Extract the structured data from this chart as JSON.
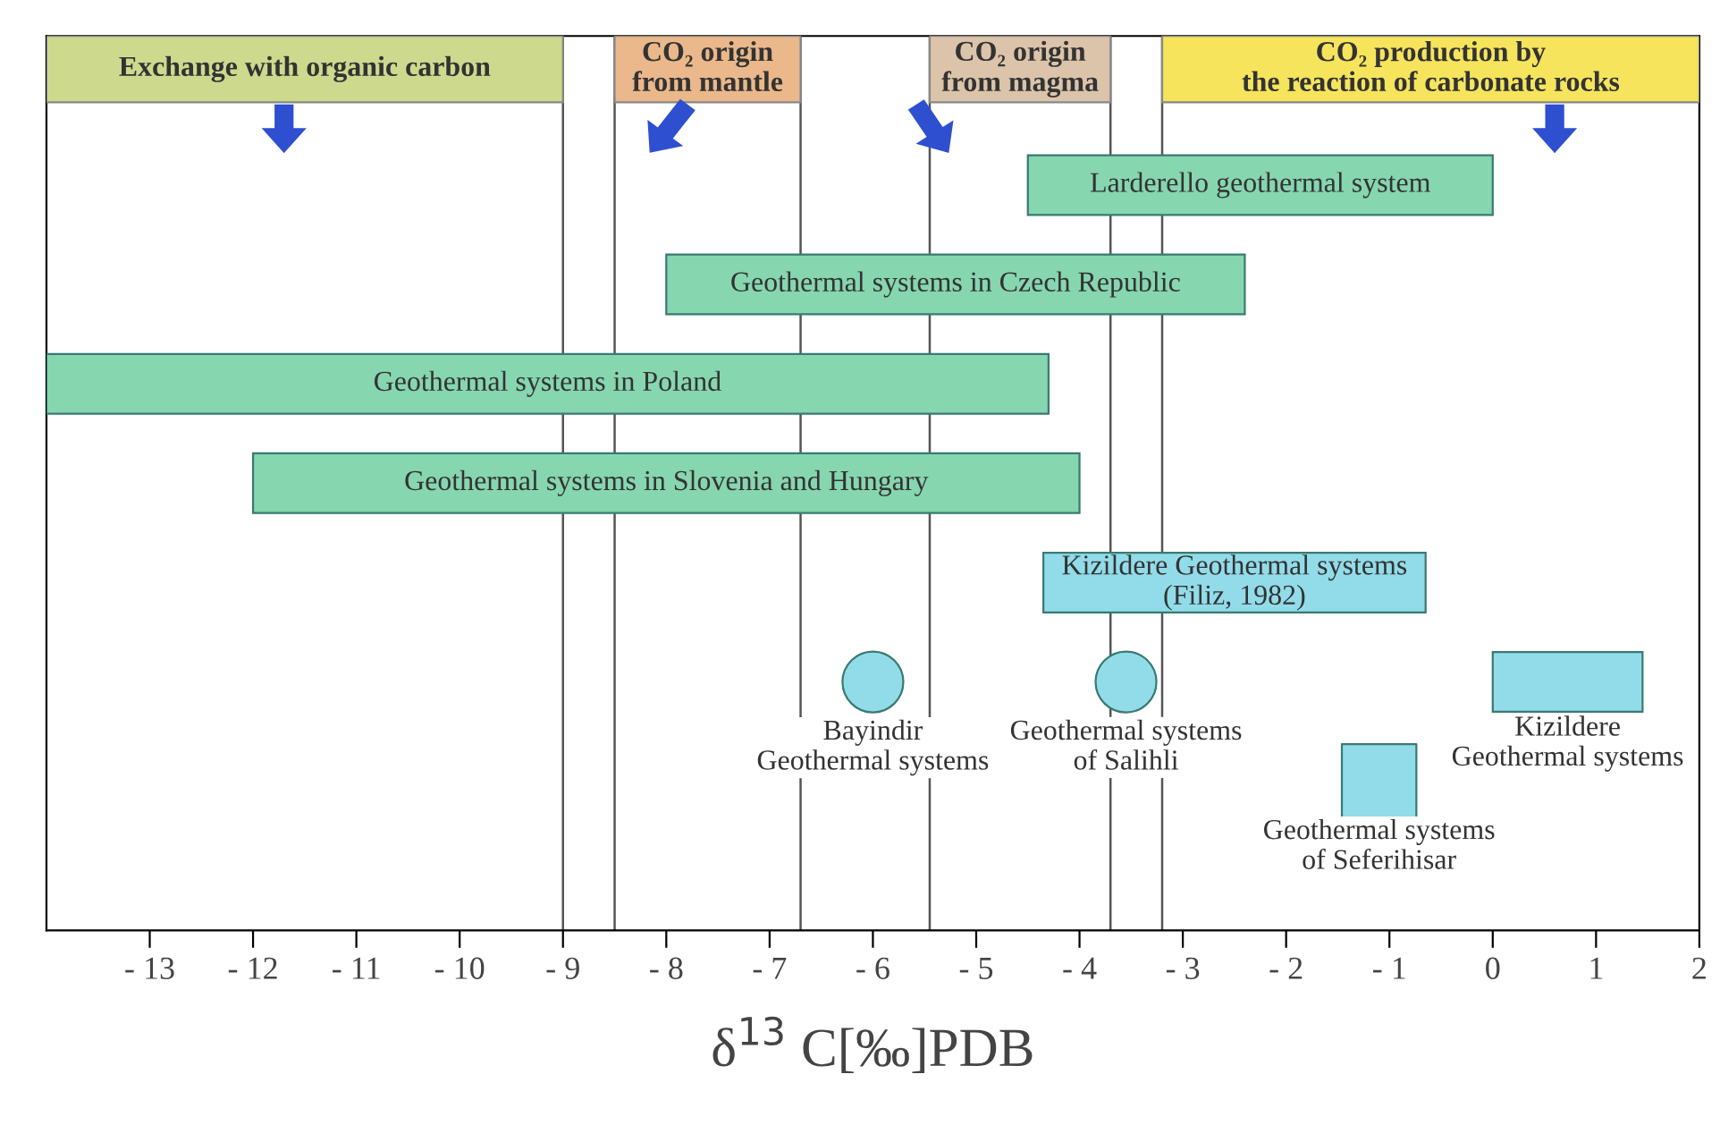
{
  "chart_data": {
    "type": "bar",
    "orientation": "horizontal",
    "categories": [
      null,
      null,
      null,
      null,
      null,
      null,
      null,
      null,
      null
    ],
    "xlabel": "δ$^{13}$ C[‰]PDB",
    "xlim": [
      -14,
      2
    ],
    "xticks": [
      {
        "value": -13,
        "label": "- 13"
      },
      {
        "value": -12,
        "label": "- 12"
      },
      {
        "value": -11,
        "label": "- 11"
      },
      {
        "value": -10,
        "label": "- 10"
      },
      {
        "value": -9,
        "label": "- 9"
      },
      {
        "value": -8,
        "label": "- 8"
      },
      {
        "value": -7,
        "label": "- 7"
      },
      {
        "value": -6,
        "label": "- 6"
      },
      {
        "value": -5,
        "label": "- 5"
      },
      {
        "value": -4,
        "label": "- 4"
      },
      {
        "value": -3,
        "label": "- 3"
      },
      {
        "value": -2,
        "label": "- 2"
      },
      {
        "value": -1,
        "label": "- 1"
      },
      0,
      1,
      2
    ],
    "tick_labels": "x",
    "grid": false,
    "series": [
      {
        "name": "Larderello geothermal system",
        "color": "#86d6b0",
        "base": [
          null,
          -4.5,
          null,
          null,
          null,
          null,
          null,
          null,
          null
        ],
        "values": [
          null,
          4.5,
          null,
          null,
          null,
          null,
          null,
          null,
          null
        ]
      },
      {
        "name": "Geothermal systems in Czech Republic",
        "color": "#86d6b0",
        "base": [
          null,
          null,
          -8.0,
          null,
          null,
          null,
          null,
          null,
          null
        ],
        "values": [
          null,
          null,
          5.6,
          null,
          null,
          null,
          null,
          null,
          null
        ]
      },
      {
        "name": "Geothermal systems in Poland",
        "color": "#86d6b0",
        "base": [
          null,
          null,
          null,
          -14.0,
          null,
          null,
          null,
          null,
          null
        ],
        "values": [
          null,
          null,
          null,
          9.7,
          null,
          null,
          null,
          null,
          null
        ]
      },
      {
        "name": "Geothermal systems in Slovenia and Hungary",
        "color": "#86d6b0",
        "base": [
          null,
          null,
          null,
          null,
          -12.0,
          null,
          null,
          null,
          null
        ],
        "values": [
          null,
          null,
          null,
          null,
          8.0,
          null,
          null,
          null,
          null
        ]
      },
      {
        "name": "Kizildere Geothermal systems\n(Filiz, 1982)",
        "color": "#92dcea",
        "base": [
          null,
          null,
          null,
          null,
          null,
          -4.35,
          null,
          null,
          null
        ],
        "values": [
          null,
          null,
          null,
          null,
          null,
          3.7,
          null,
          null,
          null
        ]
      },
      {
        "name": "Kizildere\nGeothermal systems",
        "color": "#92dcea",
        "base": [
          null,
          null,
          null,
          null,
          null,
          null,
          0.0,
          null,
          null
        ],
        "values": [
          null,
          null,
          null,
          null,
          null,
          null,
          1.45,
          null,
          null
        ]
      },
      {
        "name": "Bayindir\nGeothermal systems",
        "type": "scatter",
        "marker": "circle",
        "color": "#92dcea",
        "values": [
          null,
          null,
          null,
          null,
          null,
          null,
          -6.0,
          null,
          null
        ]
      },
      {
        "name": "Geothermal systems\nof Salihli",
        "type": "scatter",
        "marker": "circle",
        "color": "#92dcea",
        "values": [
          null,
          null,
          null,
          null,
          null,
          null,
          -3.55,
          null,
          null
        ]
      },
      {
        "name": "Geothermal systems\nof Seferihisar",
        "type": "scatter",
        "marker": "square",
        "color": "#92dcea",
        "values": [
          null,
          null,
          null,
          null,
          null,
          null,
          null,
          -1.1,
          null
        ]
      }
    ],
    "ref_lines": [
      {
        "axis": "x",
        "value": -9,
        "color": "#555555"
      },
      {
        "axis": "x",
        "value": -8.5,
        "color": "#555555"
      },
      {
        "axis": "x",
        "value": -6.7,
        "color": "#555555"
      },
      {
        "axis": "x",
        "value": -5.45,
        "color": "#555555"
      },
      {
        "axis": "x",
        "value": -3.7,
        "color": "#555555"
      },
      {
        "axis": "x",
        "value": -3.2,
        "color": "#555555"
      }
    ],
    "bands": [
      {
        "axis": "x",
        "from": -14,
        "to": -9,
        "label": "Exchange with organic carbon",
        "color": "#cdda8e"
      },
      {
        "axis": "x",
        "from": -8.5,
        "to": -6.7,
        "label": "CO₂ origin\nfrom mantle",
        "color": "#eab88a"
      },
      {
        "axis": "x",
        "from": -5.45,
        "to": -3.7,
        "label": "CO₂ origin\nfrom magma",
        "color": "#dcc4aa"
      },
      {
        "axis": "x",
        "from": -3.2,
        "to": 2,
        "label": "CO₂ production by\nthe reaction of carbonate rocks",
        "color": "#f6e45c"
      }
    ]
  }
}
